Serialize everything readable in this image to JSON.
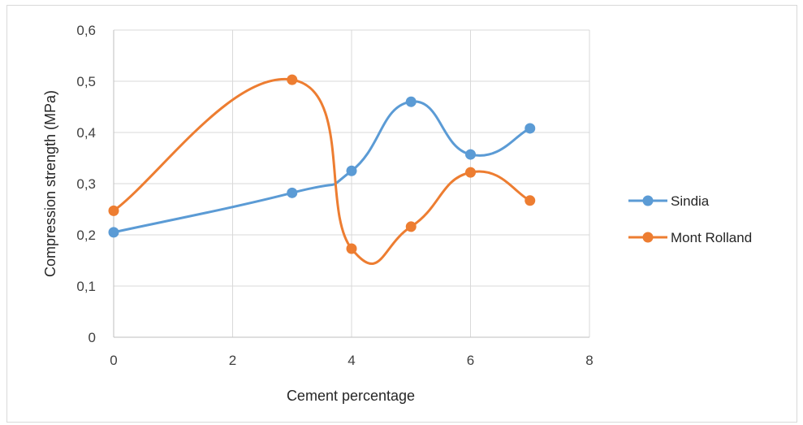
{
  "chart_data": {
    "type": "scatter",
    "title": "",
    "xlabel": "Cement percentage",
    "ylabel": "Compression strength (MPa)",
    "xlim": [
      0,
      8
    ],
    "ylim": [
      0,
      0.6
    ],
    "x_ticks": [
      "0",
      "2",
      "4",
      "6",
      "8"
    ],
    "y_ticks": [
      "0",
      "0,1",
      "0,2",
      "0,3",
      "0,4",
      "0,5",
      "0,6"
    ],
    "grid": true,
    "smooth_lines": true,
    "legend_position": "right",
    "series": [
      {
        "name": "Sindia",
        "color": "#5b9bd5",
        "x": [
          0,
          3,
          4,
          5,
          6,
          7
        ],
        "y": [
          0.205,
          0.282,
          0.325,
          0.46,
          0.357,
          0.408
        ]
      },
      {
        "name": "Mont Rolland",
        "color": "#ed7d31",
        "x": [
          0,
          3,
          4,
          5,
          6,
          7
        ],
        "y": [
          0.247,
          0.503,
          0.173,
          0.216,
          0.322,
          0.267
        ]
      }
    ]
  }
}
